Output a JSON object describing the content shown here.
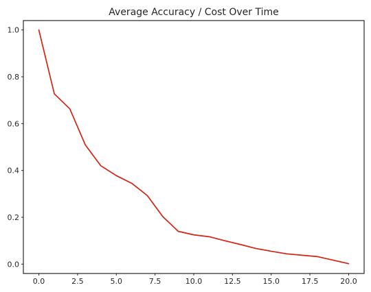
{
  "chart_data": {
    "type": "line",
    "title": "Average Accuracy / Cost Over Time",
    "xlabel": "",
    "ylabel": "",
    "xlim": [
      -1,
      21
    ],
    "ylim": [
      -0.04,
      1.04
    ],
    "grid": false,
    "x_ticks": [
      0,
      2.5,
      5,
      7.5,
      10,
      12.5,
      15,
      17.5,
      20
    ],
    "x_tick_labels": [
      "0.0",
      "2.5",
      "5.0",
      "7.5",
      "10.0",
      "12.5",
      "15.0",
      "17.5",
      "20.0"
    ],
    "y_ticks": [
      0,
      0.2,
      0.4,
      0.6,
      0.8,
      1.0
    ],
    "y_tick_labels": [
      "0.0",
      "0.2",
      "0.4",
      "0.6",
      "0.8",
      "1.0"
    ],
    "series": [
      {
        "color": "#d62010",
        "x": [
          0,
          1,
          2,
          3,
          4,
          5,
          6,
          7,
          8,
          9,
          10,
          11,
          12,
          13,
          14,
          15,
          16,
          17,
          18,
          19,
          20
        ],
        "y": [
          1.0,
          0.727,
          0.663,
          0.509,
          0.42,
          0.378,
          0.345,
          0.293,
          0.203,
          0.14,
          0.125,
          0.117,
          0.1,
          0.084,
          0.067,
          0.055,
          0.044,
          0.038,
          0.032,
          0.017,
          0.002
        ]
      }
    ]
  }
}
